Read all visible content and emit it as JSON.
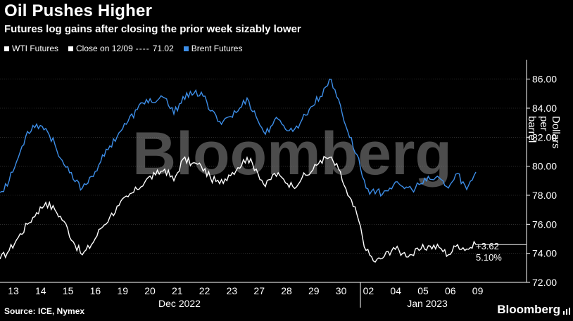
{
  "header": {
    "title": "Oil Pushes Higher",
    "subtitle": "Futures log gains after closing the prior week sizably lower"
  },
  "legend": {
    "wti": "WTI Futures",
    "close": "Close on 12/09",
    "close_value": "71.02",
    "brent": "Brent Futures"
  },
  "annotations": {
    "change": "+3.62",
    "pct": "5.10%"
  },
  "footer": {
    "source": "Source: ICE, Nymex",
    "brand": "Bloomberg",
    "watermark": "Bloomberg"
  },
  "colors": {
    "wti": "#ffffff",
    "brent": "#3d8ee8",
    "background": "#000000",
    "grid": "#4a4a4a"
  },
  "chart_data": {
    "type": "line",
    "ylabel": "Dollars per barrel",
    "ylim": [
      72,
      87
    ],
    "yticks": [
      "72.00",
      "74.00",
      "76.00",
      "78.00",
      "80.00",
      "82.00",
      "84.00",
      "86.00"
    ],
    "x_tick_labels": [
      "13",
      "14",
      "15",
      "16",
      "19",
      "20",
      "21",
      "22",
      "23",
      "27",
      "28",
      "29",
      "30",
      "02",
      "04",
      "05",
      "06",
      "09"
    ],
    "x_group_labels": [
      "Dec 2022",
      "Jan 2023"
    ],
    "reference_line": {
      "name": "Close on 12/09",
      "value": 71.02
    },
    "series": [
      {
        "name": "WTI Futures",
        "values": [
          73.6,
          74.2,
          75.1,
          76.0,
          76.8,
          77.5,
          77.0,
          76.2,
          74.8,
          73.9,
          74.6,
          75.7,
          76.5,
          77.3,
          77.9,
          78.4,
          79.1,
          79.4,
          79.8,
          79.0,
          80.5,
          80.2,
          80.0,
          79.2,
          78.8,
          79.4,
          79.9,
          80.6,
          79.8,
          78.6,
          79.5,
          79.1,
          78.6,
          79.2,
          79.6,
          80.4,
          80.6,
          79.8,
          78.0,
          76.7,
          74.2,
          73.4,
          73.8,
          74.4,
          74.0,
          73.9,
          74.3,
          74.5,
          74.4,
          73.9,
          74.6,
          74.3,
          74.6
        ]
      },
      {
        "name": "Brent Futures",
        "values": [
          78.2,
          79.0,
          80.6,
          82.4,
          82.9,
          82.6,
          81.5,
          80.1,
          79.1,
          78.5,
          79.3,
          80.3,
          81.4,
          82.3,
          83.1,
          83.9,
          84.6,
          84.4,
          84.7,
          83.6,
          84.8,
          84.9,
          85.1,
          83.8,
          83.1,
          83.4,
          83.8,
          84.7,
          83.4,
          82.2,
          83.2,
          82.8,
          82.4,
          83.2,
          84.1,
          84.8,
          86.0,
          84.6,
          82.4,
          80.8,
          78.5,
          78.1,
          78.3,
          78.7,
          78.6,
          78.4,
          78.8,
          79.1,
          79.2,
          78.5,
          79.5,
          78.4,
          79.6
        ]
      }
    ]
  }
}
